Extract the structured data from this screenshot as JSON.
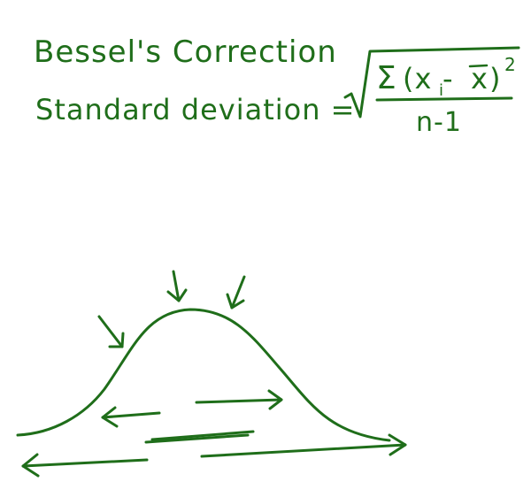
{
  "title": "Bessel's Correction",
  "formula": {
    "label": "Standard deviation =",
    "numerator_sigma": "Σ",
    "numerator_body": "(x",
    "numerator_subscript": "i",
    "numerator_minus": " -",
    "numerator_xbar": "x",
    "numerator_close": ")",
    "numerator_exponent": "2",
    "denominator": "n-1"
  },
  "colors": {
    "ink": "#1f6e1a",
    "background": "#ffffff"
  },
  "sketch": {
    "curve": "bell-curve",
    "arrows": [
      "down-arrow",
      "down-arrow",
      "down-arrow"
    ],
    "spread_arrows": [
      "left-arrow",
      "right-arrow",
      "left-arrow",
      "right-arrow"
    ]
  }
}
